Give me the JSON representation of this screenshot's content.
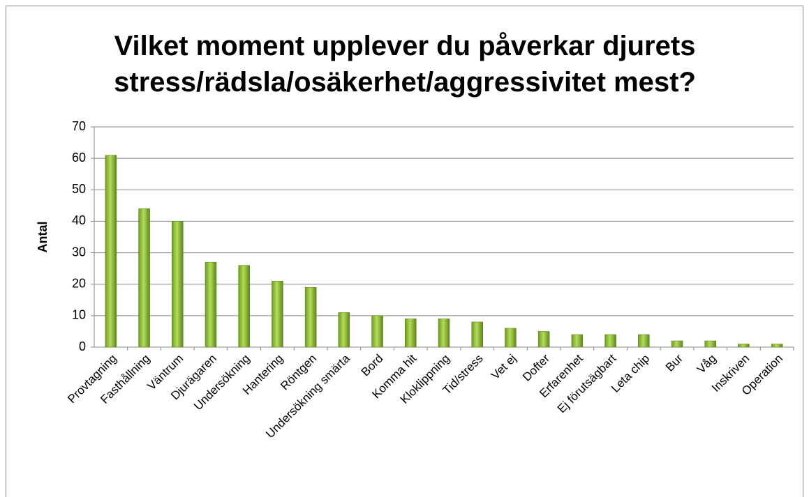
{
  "chart_data": {
    "type": "bar",
    "title": "Vilket moment upplever du påverkar djurets stress/rädsla/osäkerhet/aggressivitet mest?",
    "y_label": "Antal",
    "categories": [
      "Provtagning",
      "Fasthållning",
      "Väntrum",
      "Djurägaren",
      "Undersökning",
      "Hantering",
      "Röntgen",
      "Undersökning smärta",
      "Bord",
      "Komma hit",
      "Kloklippning",
      "Tid/stress",
      "Vet ej",
      "Dofter",
      "Erfarenhet",
      "Ej förutsägbart",
      "Leta chip",
      "Bur",
      "Våg",
      "Inskriven",
      "Operation"
    ],
    "values": [
      61,
      44,
      40,
      27,
      26,
      21,
      19,
      11,
      10,
      9,
      9,
      8,
      6,
      5,
      4,
      4,
      4,
      2,
      2,
      1,
      1
    ],
    "color": "#8db83a",
    "ylim": [
      0,
      70
    ],
    "yticks": [
      0,
      10,
      20,
      30,
      40,
      50,
      60,
      70
    ],
    "grid": true
  }
}
